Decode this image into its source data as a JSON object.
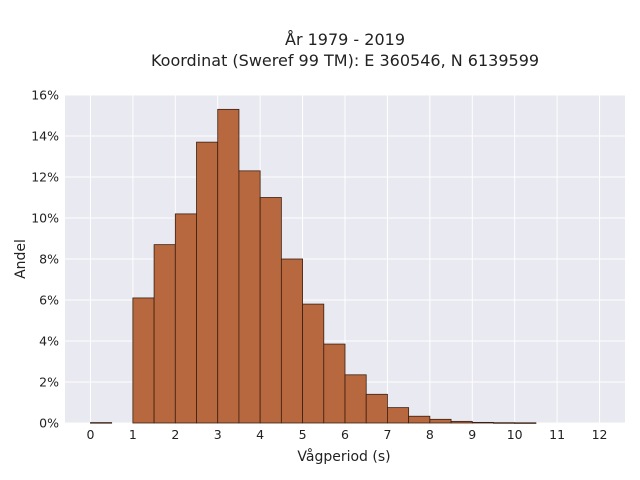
{
  "chart_data": {
    "type": "bar",
    "title_line1": "År 1979 - 2019",
    "title_line2": "Koordinat (Sweref 99 TM): E 360546, N 6139599",
    "xlabel": "Vågperiod (s)",
    "ylabel": "Andel",
    "xlim": [
      -0.6,
      12.6
    ],
    "ylim": [
      0,
      16
    ],
    "x_ticks": [
      0,
      1,
      2,
      3,
      4,
      5,
      6,
      7,
      8,
      9,
      10,
      11,
      12
    ],
    "y_ticks": [
      0,
      2,
      4,
      6,
      8,
      10,
      12,
      14,
      16
    ],
    "y_tick_labels": [
      "0%",
      "2%",
      "4%",
      "6%",
      "8%",
      "10%",
      "12%",
      "14%",
      "16%"
    ],
    "bin_width": 0.5,
    "bins": [
      {
        "x_start": 0.0,
        "value": 0.02
      },
      {
        "x_start": 1.0,
        "value": 6.1
      },
      {
        "x_start": 1.5,
        "value": 8.7
      },
      {
        "x_start": 2.0,
        "value": 10.2
      },
      {
        "x_start": 2.5,
        "value": 13.7
      },
      {
        "x_start": 3.0,
        "value": 15.3
      },
      {
        "x_start": 3.5,
        "value": 12.3
      },
      {
        "x_start": 4.0,
        "value": 11.0
      },
      {
        "x_start": 4.5,
        "value": 8.0
      },
      {
        "x_start": 5.0,
        "value": 5.8
      },
      {
        "x_start": 5.5,
        "value": 3.85
      },
      {
        "x_start": 6.0,
        "value": 2.35
      },
      {
        "x_start": 6.5,
        "value": 1.4
      },
      {
        "x_start": 7.0,
        "value": 0.75
      },
      {
        "x_start": 7.5,
        "value": 0.33
      },
      {
        "x_start": 8.0,
        "value": 0.18
      },
      {
        "x_start": 8.5,
        "value": 0.08
      },
      {
        "x_start": 9.0,
        "value": 0.03
      },
      {
        "x_start": 9.5,
        "value": 0.015
      },
      {
        "x_start": 10.0,
        "value": 0.01
      }
    ],
    "grid": true,
    "colors": {
      "bar_fill": "#b8683e",
      "bar_edge": "#3a1f10",
      "plot_bg": "#e8e9f1",
      "grid": "#ffffff"
    }
  }
}
